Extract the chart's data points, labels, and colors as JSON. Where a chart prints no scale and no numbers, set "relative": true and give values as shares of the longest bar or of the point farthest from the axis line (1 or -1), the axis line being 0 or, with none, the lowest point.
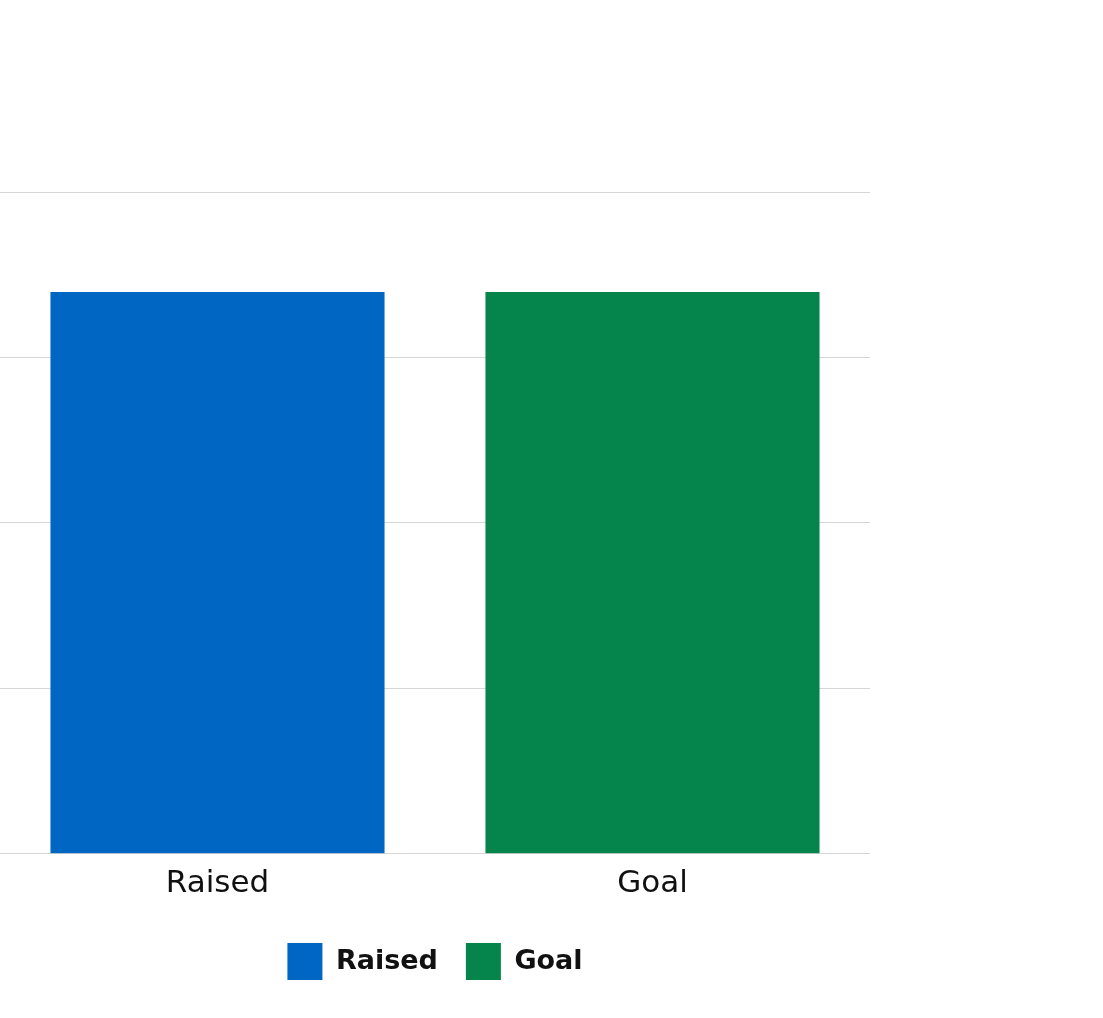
{
  "chart_data": {
    "type": "bar",
    "categories": [
      "Raised",
      "Goal"
    ],
    "series": [
      {
        "name": "Raised",
        "color": "#0066c3",
        "values": [
          1,
          null
        ]
      },
      {
        "name": "Goal",
        "color": "#05844c",
        "values": [
          null,
          1
        ]
      }
    ],
    "relative": true,
    "grid": "y",
    "legend": "bottom"
  }
}
